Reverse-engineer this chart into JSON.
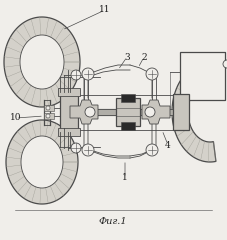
{
  "title": "Фиг.1",
  "title_fontsize": 7,
  "bg_color": "#f0eeea",
  "line_color": "#4a4a4a",
  "tire_fill": "#d4d1ca",
  "tire_hatch": "#aaa89e",
  "metal_fill": "#c8c5be",
  "dark_fill": "#2a2a2a",
  "label_color": "#222222",
  "figsize": [
    2.27,
    2.4
  ],
  "dpi": 100
}
